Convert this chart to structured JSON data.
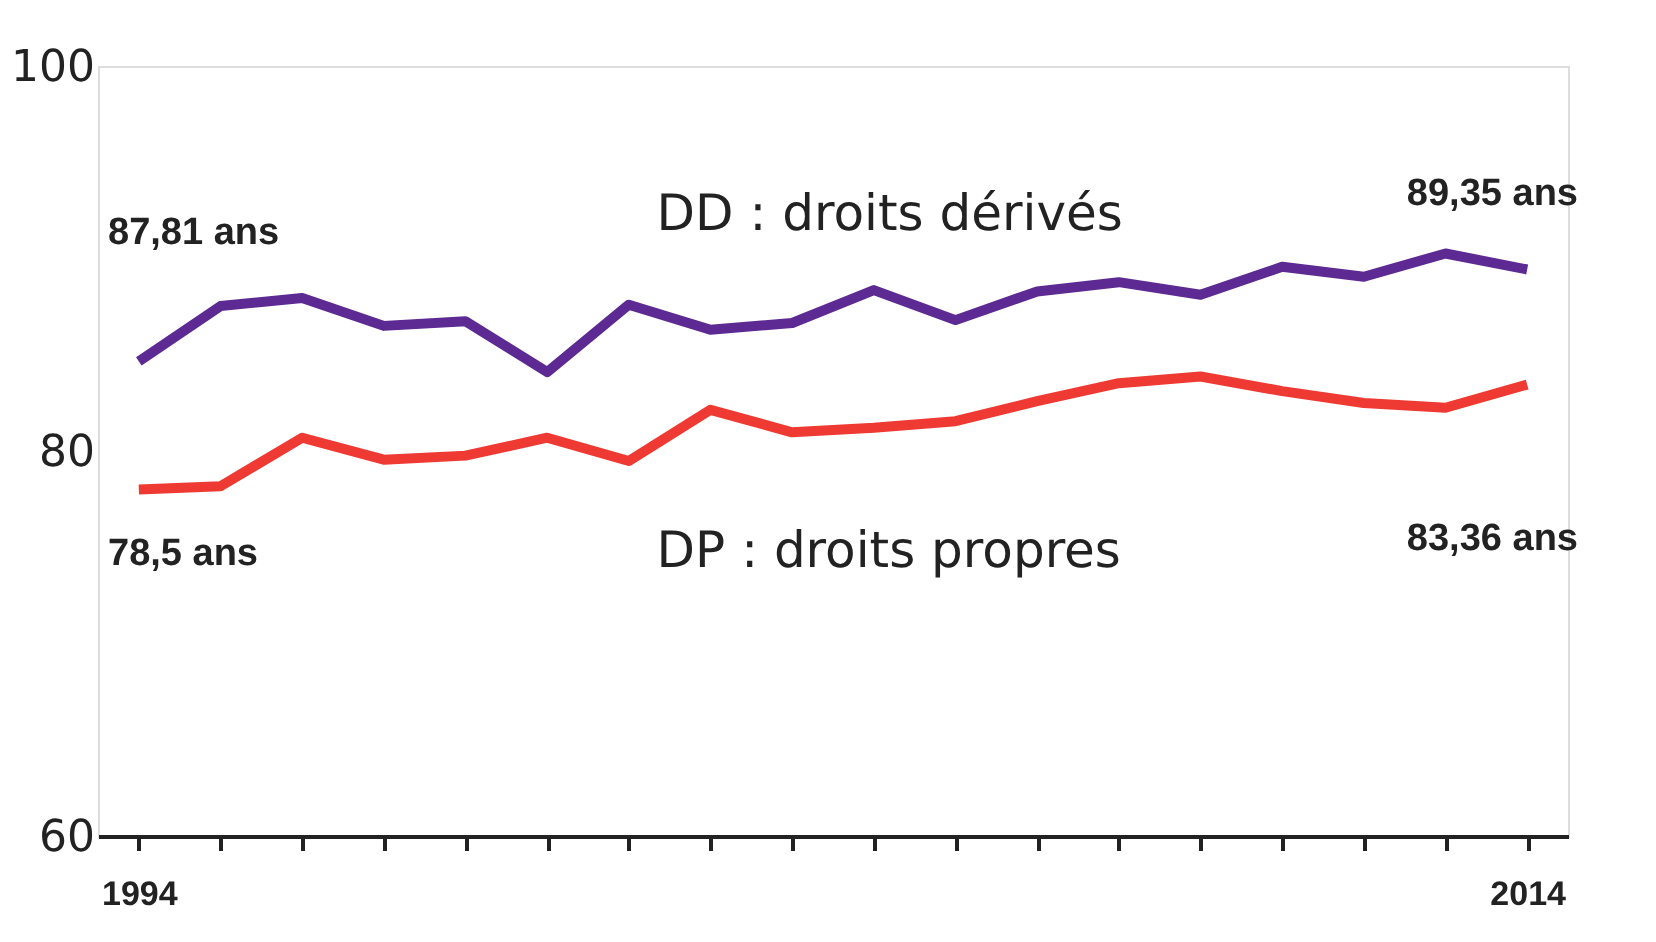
{
  "chart_data": {
    "type": "line",
    "categories": [
      "1994",
      null,
      null,
      null,
      null,
      null,
      null,
      null,
      null,
      null,
      null,
      null,
      null,
      null,
      null,
      null,
      null,
      "2014"
    ],
    "series": [
      {
        "name": "DD : droits dérivés",
        "color": "#5c2a92",
        "values": [
          84.66,
          87.53,
          87.95,
          86.5,
          86.74,
          84.1,
          87.6,
          86.3,
          86.65,
          88.36,
          86.8,
          88.29,
          88.77,
          88.12,
          89.57,
          89.05,
          90.26,
          89.43
        ]
      },
      {
        "name": "DP : droits propres",
        "color": "#ee3a33",
        "values": [
          78.0,
          78.17,
          80.69,
          79.55,
          79.76,
          80.69,
          79.48,
          82.14,
          80.97,
          81.21,
          81.55,
          82.59,
          83.52,
          83.87,
          83.11,
          82.49,
          82.25,
          83.45
        ]
      }
    ],
    "annotations": [
      "87,81 ans",
      "78,5 ans",
      "89,35 ans",
      "83,36 ans"
    ],
    "ylim": [
      60,
      100
    ],
    "yticks": [
      60,
      80,
      100
    ],
    "grid": false,
    "legend": false,
    "marker": "none",
    "line_style": "solid"
  }
}
